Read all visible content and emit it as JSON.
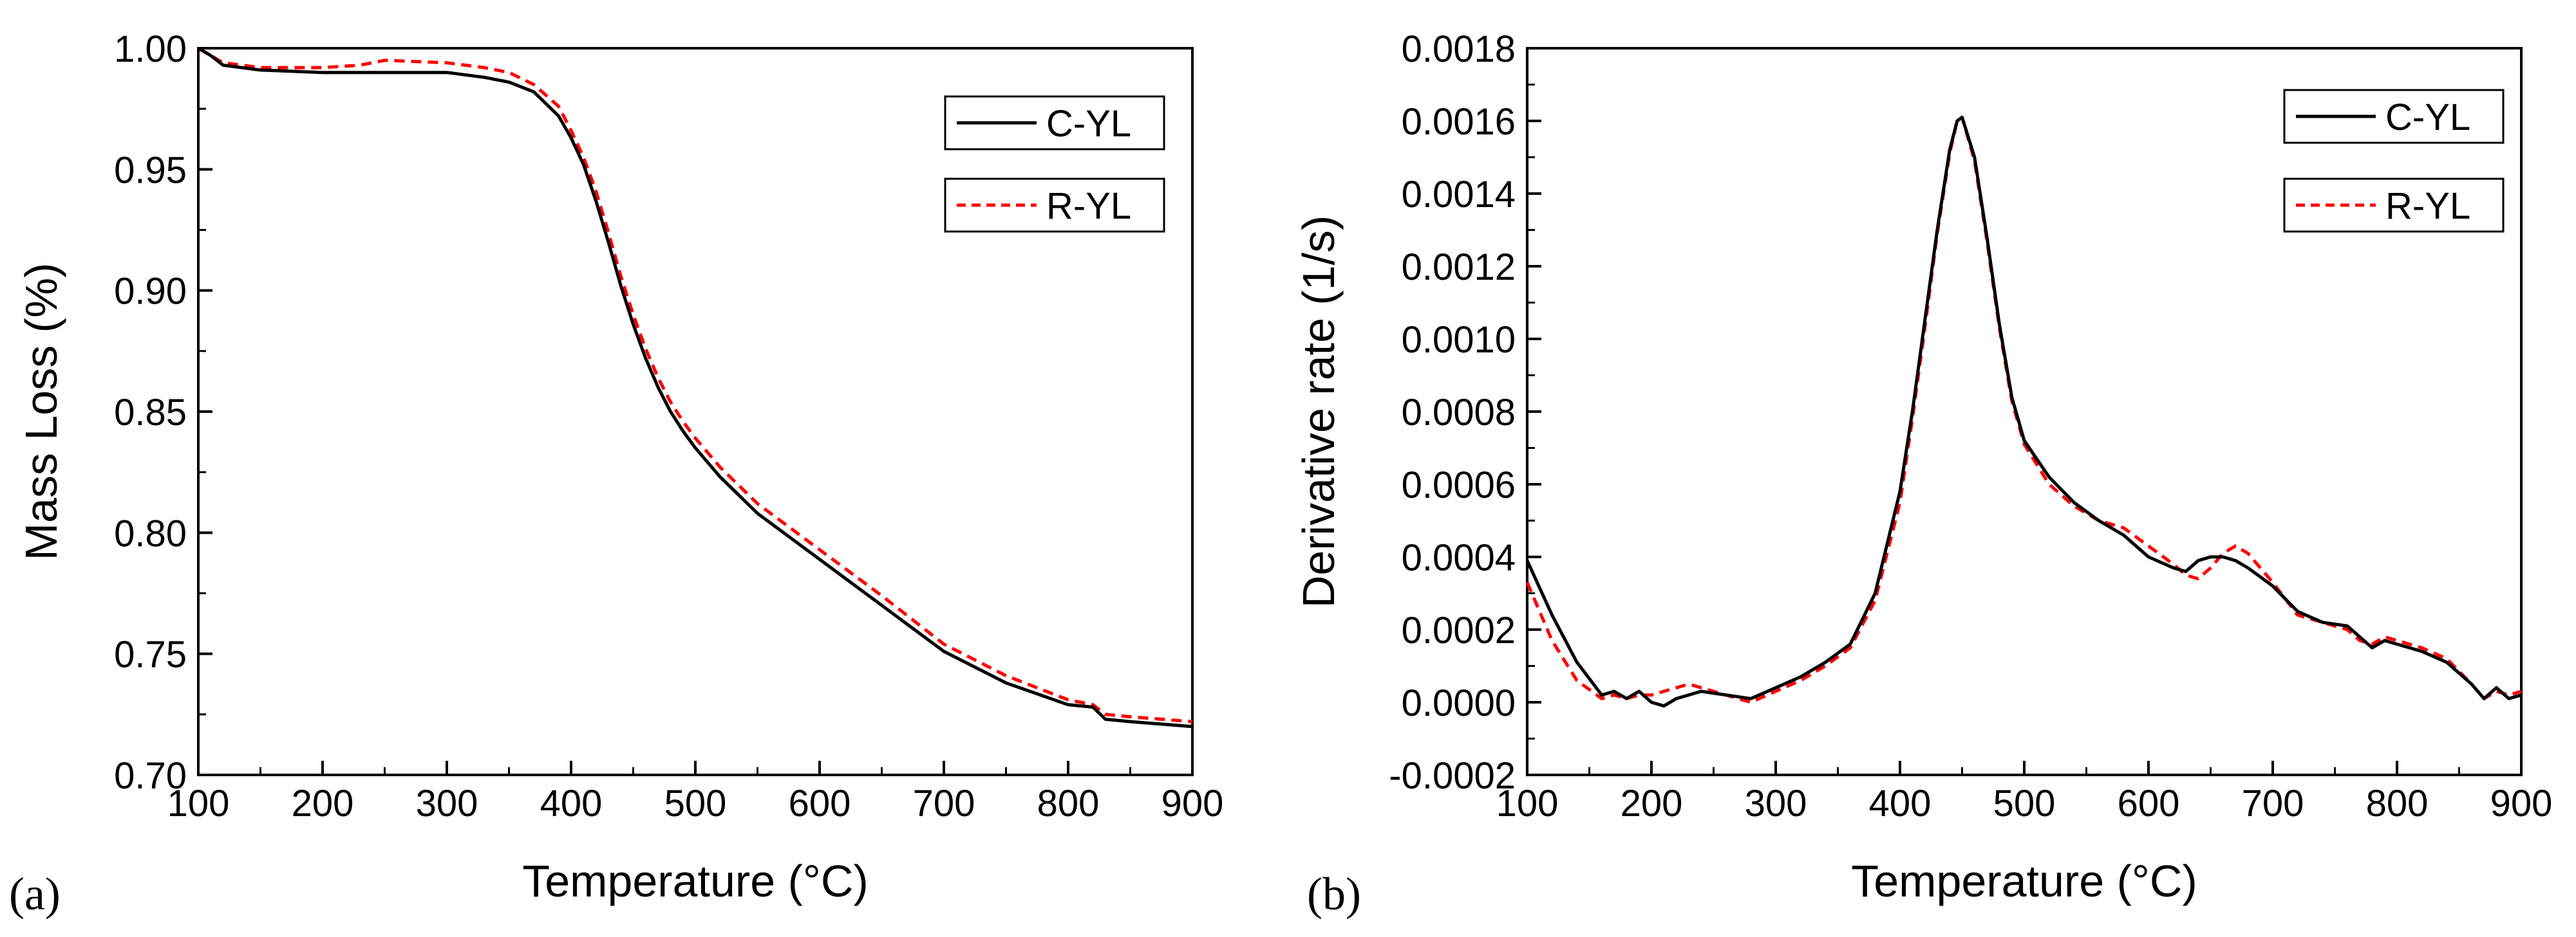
{
  "colors": {
    "c_yl": "#000000",
    "r_yl": "#ff0000"
  },
  "chart_data": [
    {
      "id": "a",
      "type": "line",
      "panel_label": "(a)",
      "title": "",
      "xlabel": "Temperature (°C)",
      "ylabel": "Mass Loss (%)",
      "xlim": [
        100,
        900
      ],
      "ylim": [
        0.7,
        1.0
      ],
      "xticks": [
        100,
        200,
        300,
        400,
        500,
        600,
        700,
        800,
        900
      ],
      "xtick_labels": [
        "100",
        "200",
        "300",
        "400",
        "500",
        "600",
        "700",
        "800",
        "900"
      ],
      "yticks": [
        0.7,
        0.75,
        0.8,
        0.85,
        0.9,
        0.95,
        1.0
      ],
      "ytick_labels": [
        "0.70",
        "0.75",
        "0.80",
        "0.85",
        "0.90",
        "0.95",
        "1.00"
      ],
      "legend_position": "top-right",
      "series": [
        {
          "name": "C-YL",
          "style": "solid",
          "x": [
            100,
            110,
            120,
            150,
            200,
            250,
            300,
            330,
            350,
            370,
            390,
            400,
            410,
            420,
            430,
            440,
            450,
            460,
            470,
            480,
            490,
            500,
            520,
            550,
            600,
            650,
            700,
            750,
            800,
            820,
            830,
            850,
            900
          ],
          "y": [
            1.0,
            0.997,
            0.993,
            0.991,
            0.99,
            0.99,
            0.99,
            0.988,
            0.986,
            0.982,
            0.972,
            0.963,
            0.952,
            0.937,
            0.92,
            0.902,
            0.886,
            0.872,
            0.86,
            0.85,
            0.842,
            0.835,
            0.823,
            0.808,
            0.789,
            0.77,
            0.751,
            0.738,
            0.729,
            0.728,
            0.723,
            0.722,
            0.72
          ]
        },
        {
          "name": "R-YL",
          "style": "dashed",
          "x": [
            100,
            110,
            120,
            150,
            200,
            230,
            250,
            300,
            330,
            350,
            370,
            390,
            400,
            410,
            420,
            430,
            440,
            450,
            460,
            470,
            480,
            490,
            500,
            520,
            550,
            600,
            650,
            700,
            750,
            800,
            820,
            830,
            850,
            900
          ],
          "y": [
            1.0,
            0.997,
            0.994,
            0.992,
            0.992,
            0.993,
            0.995,
            0.994,
            0.992,
            0.99,
            0.985,
            0.976,
            0.966,
            0.955,
            0.941,
            0.924,
            0.906,
            0.89,
            0.876,
            0.864,
            0.854,
            0.846,
            0.839,
            0.827,
            0.812,
            0.793,
            0.774,
            0.754,
            0.741,
            0.731,
            0.729,
            0.725,
            0.724,
            0.722
          ]
        }
      ]
    },
    {
      "id": "b",
      "type": "line",
      "panel_label": "(b)",
      "title": "",
      "xlabel": "Temperature (°C)",
      "ylabel": "Derivative rate (1/s)",
      "xlim": [
        100,
        900
      ],
      "ylim": [
        -0.0002,
        0.0018
      ],
      "xticks": [
        100,
        200,
        300,
        400,
        500,
        600,
        700,
        800,
        900
      ],
      "xtick_labels": [
        "100",
        "200",
        "300",
        "400",
        "500",
        "600",
        "700",
        "800",
        "900"
      ],
      "yticks": [
        -0.0002,
        0.0,
        0.0002,
        0.0004,
        0.0006,
        0.0008,
        0.001,
        0.0012,
        0.0014,
        0.0016,
        0.0018
      ],
      "ytick_labels": [
        "-0.0002",
        "0.0000",
        "0.0002",
        "0.0004",
        "0.0006",
        "0.0008",
        "0.0010",
        "0.0012",
        "0.0014",
        "0.0016",
        "0.0018"
      ],
      "legend_position": "top-right",
      "series": [
        {
          "name": "C-YL",
          "style": "solid",
          "x": [
            100,
            120,
            140,
            160,
            170,
            180,
            190,
            200,
            210,
            220,
            240,
            260,
            280,
            300,
            320,
            340,
            360,
            380,
            400,
            410,
            420,
            430,
            440,
            446,
            450,
            460,
            470,
            480,
            490,
            500,
            520,
            540,
            560,
            580,
            600,
            620,
            630,
            640,
            650,
            660,
            670,
            680,
            700,
            720,
            740,
            760,
            770,
            780,
            790,
            800,
            820,
            840,
            860,
            870,
            880,
            890,
            900
          ],
          "y": [
            0.00039,
            0.00024,
            0.00011,
            2e-05,
            3e-05,
            1e-05,
            3e-05,
            0.0,
            -1e-05,
            1e-05,
            3e-05,
            2e-05,
            1e-05,
            4e-05,
            7e-05,
            0.00011,
            0.00016,
            0.0003,
            0.00058,
            0.0008,
            0.00105,
            0.0013,
            0.00152,
            0.0016,
            0.00161,
            0.0015,
            0.00128,
            0.00104,
            0.00084,
            0.00072,
            0.00062,
            0.00055,
            0.0005,
            0.00046,
            0.0004,
            0.00037,
            0.00036,
            0.00039,
            0.0004,
            0.0004,
            0.00039,
            0.00037,
            0.00032,
            0.00025,
            0.00022,
            0.00021,
            0.00018,
            0.00015,
            0.00017,
            0.00016,
            0.00014,
            0.00011,
            5e-05,
            1e-05,
            4e-05,
            1e-05,
            2e-05
          ]
        },
        {
          "name": "R-YL",
          "style": "dashed",
          "x": [
            100,
            120,
            140,
            160,
            170,
            180,
            190,
            200,
            210,
            220,
            230,
            240,
            260,
            280,
            300,
            320,
            340,
            360,
            380,
            400,
            410,
            420,
            430,
            440,
            446,
            450,
            460,
            470,
            480,
            490,
            500,
            520,
            540,
            560,
            580,
            600,
            620,
            630,
            640,
            650,
            660,
            670,
            680,
            700,
            720,
            740,
            760,
            770,
            780,
            790,
            800,
            820,
            840,
            860,
            870,
            880,
            890,
            900
          ],
          "y": [
            0.00033,
            0.00017,
            6e-05,
            1e-05,
            2e-05,
            1e-05,
            2e-05,
            2e-05,
            3e-05,
            4e-05,
            5e-05,
            4e-05,
            2e-05,
            0.0,
            3e-05,
            6e-05,
            0.0001,
            0.00015,
            0.00028,
            0.00055,
            0.00078,
            0.00103,
            0.00129,
            0.00151,
            0.0016,
            0.00161,
            0.00149,
            0.00127,
            0.00103,
            0.00083,
            0.00071,
            0.0006,
            0.00054,
            0.0005,
            0.00048,
            0.00043,
            0.00038,
            0.00035,
            0.00034,
            0.00037,
            0.00041,
            0.00043,
            0.00041,
            0.00033,
            0.00024,
            0.00022,
            0.0002,
            0.00017,
            0.00016,
            0.00018,
            0.00017,
            0.00015,
            0.00012,
            5e-05,
            1e-05,
            3e-05,
            2e-05,
            3e-05
          ]
        }
      ]
    }
  ]
}
